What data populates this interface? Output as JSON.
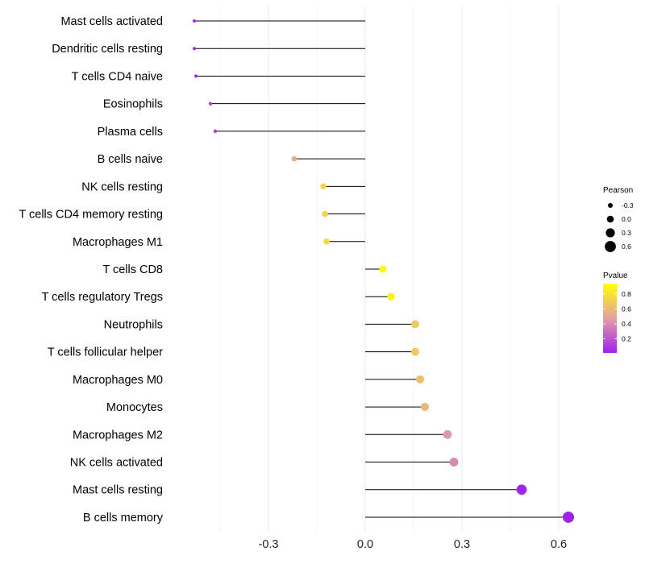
{
  "chart_data": {
    "type": "lollipop",
    "title": "",
    "xlabel": "",
    "ylabel": "",
    "xlim": [
      -0.6,
      0.66
    ],
    "x_ticks": [
      -0.3,
      0.0,
      0.3,
      0.6
    ],
    "x_tick_labels": [
      "-0.3",
      "0.0",
      "0.3",
      "0.6"
    ],
    "grid": true,
    "legend_position": "right",
    "categories": [
      "Mast cells activated",
      "Dendritic cells resting",
      "T cells CD4 naive",
      "Eosinophils",
      "Plasma cells",
      "B cells naive",
      "NK cells resting",
      "T cells CD4 memory resting",
      "Macrophages M1",
      "T cells CD8",
      "T cells regulatory  Tregs ",
      "Neutrophils",
      "T cells follicular helper",
      "Macrophages M0",
      "Monocytes",
      "Macrophages M2",
      "NK cells activated",
      "Mast cells resting",
      "B cells memory"
    ],
    "pearson": [
      -0.53,
      -0.53,
      -0.525,
      -0.48,
      -0.465,
      -0.22,
      -0.13,
      -0.125,
      -0.12,
      0.055,
      0.08,
      0.155,
      0.155,
      0.17,
      0.185,
      0.255,
      0.275,
      0.485,
      0.63
    ],
    "pvalue": [
      0.04,
      0.04,
      0.05,
      0.1,
      0.12,
      0.54,
      0.73,
      0.74,
      0.75,
      0.94,
      0.88,
      0.67,
      0.67,
      0.62,
      0.59,
      0.45,
      0.4,
      0.02,
      0.01
    ],
    "legend_size": {
      "title": "Pearson",
      "labels": [
        "-0.3",
        "0.0",
        "0.3",
        "0.6"
      ],
      "values": [
        -0.3,
        0.0,
        0.3,
        0.6
      ]
    },
    "legend_color": {
      "title": "Pvalue",
      "labels": [
        "0.8",
        "0.6",
        "0.4",
        "0.2"
      ],
      "values": [
        0.8,
        0.6,
        0.4,
        0.2
      ],
      "range": [
        0.01,
        0.94
      ],
      "low_color": "#a020f0",
      "mid_color": "#e3a0a5",
      "high_color": "#ffff00"
    },
    "colors": {
      "segment": "#000000",
      "grid": "#ebebeb",
      "text": "#000000",
      "tick_text": "#222222"
    }
  }
}
